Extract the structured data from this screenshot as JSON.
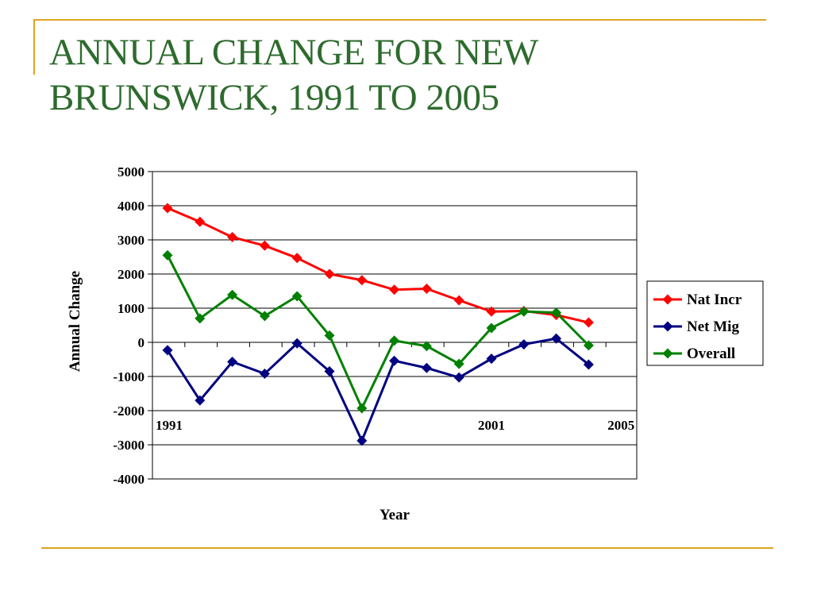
{
  "slide": {
    "title_lines": [
      "ANNUAL CHANGE FOR NEW",
      "BRUNSWICK, 1991 TO 2005"
    ],
    "title_color": "#2E6B2E",
    "accent_rule_color": "#DAA520"
  },
  "chart_data": {
    "type": "line",
    "x": [
      1991,
      1992,
      1993,
      1994,
      1995,
      1996,
      1997,
      1998,
      1999,
      2000,
      2001,
      2002,
      2003,
      2004
    ],
    "x_tick_labels": [
      "1991",
      "2001",
      "2005"
    ],
    "xlabel": "Year",
    "ylabel": "Annual Change",
    "ylim": [
      -4000,
      5000
    ],
    "y_ticks": [
      5000,
      4000,
      3000,
      2000,
      1000,
      0,
      -1000,
      -2000,
      -3000,
      -4000
    ],
    "y_tick_labels": [
      "5000",
      "4000",
      "3000",
      "2000",
      "1000",
      "0",
      "-1000",
      "-2000",
      "-3000",
      "-4000"
    ],
    "grid": "horizontal",
    "legend_position": "right",
    "marker": "diamond",
    "series": [
      {
        "name": "Nat Incr",
        "color": "#FF0000",
        "values": [
          3930,
          3530,
          3080,
          2830,
          2470,
          2000,
          1820,
          1540,
          1570,
          1230,
          900,
          920,
          800,
          580
        ]
      },
      {
        "name": "Net Mig",
        "color": "#000080",
        "values": [
          -230,
          -1700,
          -570,
          -920,
          -30,
          -850,
          -2880,
          -540,
          -750,
          -1030,
          -480,
          -60,
          110,
          -650
        ]
      },
      {
        "name": "Overall",
        "color": "#008000",
        "values": [
          2550,
          700,
          1390,
          770,
          1350,
          200,
          -1930,
          50,
          -110,
          -630,
          420,
          900,
          870,
          -90
        ]
      }
    ]
  }
}
